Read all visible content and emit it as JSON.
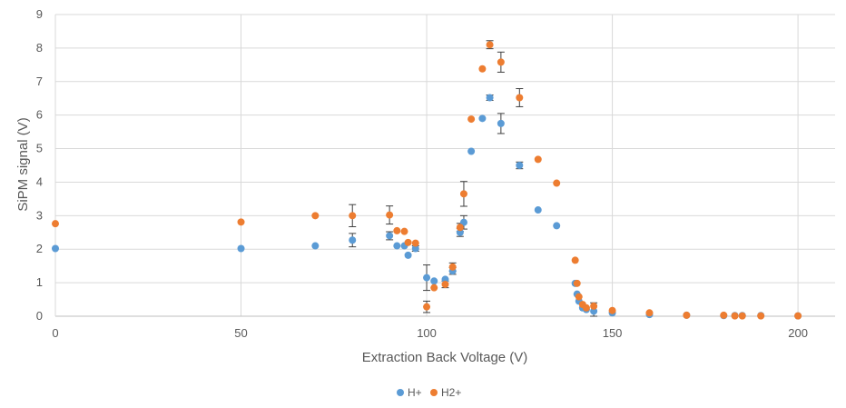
{
  "chart_data": {
    "type": "scatter",
    "title": "",
    "xlabel": "Extraction Back Voltage (V)",
    "ylabel": "SiPM signal (V)",
    "xlim": [
      0,
      210
    ],
    "ylim": [
      0,
      9
    ],
    "xticks": [
      0,
      50,
      100,
      150,
      200
    ],
    "yticks": [
      0,
      1,
      2,
      3,
      4,
      5,
      6,
      7,
      8,
      9
    ],
    "grid": true,
    "legend_position": "bottom",
    "series": [
      {
        "name": "H+",
        "color": "#5B9BD5",
        "points": [
          {
            "x": 0,
            "y": 2.02
          },
          {
            "x": 50,
            "y": 2.02
          },
          {
            "x": 70,
            "y": 2.1
          },
          {
            "x": 80,
            "y": 2.27,
            "err": 0.2
          },
          {
            "x": 90,
            "y": 2.4,
            "err": 0.12
          },
          {
            "x": 92,
            "y": 2.1
          },
          {
            "x": 94,
            "y": 2.1
          },
          {
            "x": 95,
            "y": 1.82
          },
          {
            "x": 97,
            "y": 2.02,
            "err": 0.08
          },
          {
            "x": 100,
            "y": 1.15,
            "err": 0.38
          },
          {
            "x": 102,
            "y": 1.05
          },
          {
            "x": 105,
            "y": 1.1
          },
          {
            "x": 107,
            "y": 1.35,
            "err": 0.1
          },
          {
            "x": 109,
            "y": 2.5,
            "err": 0.12
          },
          {
            "x": 110,
            "y": 2.8,
            "err": 0.2
          },
          {
            "x": 112,
            "y": 4.92
          },
          {
            "x": 115,
            "y": 5.9
          },
          {
            "x": 117,
            "y": 6.52,
            "err": 0.08
          },
          {
            "x": 120,
            "y": 5.75,
            "err": 0.3
          },
          {
            "x": 125,
            "y": 4.5,
            "err": 0.1
          },
          {
            "x": 130,
            "y": 3.17
          },
          {
            "x": 135,
            "y": 2.7
          },
          {
            "x": 140,
            "y": 0.98
          },
          {
            "x": 140.5,
            "y": 0.66
          },
          {
            "x": 141,
            "y": 0.45
          },
          {
            "x": 142,
            "y": 0.25
          },
          {
            "x": 143,
            "y": 0.2
          },
          {
            "x": 145,
            "y": 0.15,
            "err": 0.25
          },
          {
            "x": 150,
            "y": 0.1
          },
          {
            "x": 160,
            "y": 0.05
          },
          {
            "x": 170,
            "y": 0.03
          },
          {
            "x": 180,
            "y": 0.02
          },
          {
            "x": 183,
            "y": 0.02
          },
          {
            "x": 185,
            "y": 0.02
          },
          {
            "x": 190,
            "y": 0.02
          },
          {
            "x": 200,
            "y": 0.01
          }
        ]
      },
      {
        "name": "H2+",
        "color": "#ED7D31",
        "points": [
          {
            "x": 0,
            "y": 2.76
          },
          {
            "x": 50,
            "y": 2.81
          },
          {
            "x": 70,
            "y": 3.0
          },
          {
            "x": 80,
            "y": 3.0,
            "err": 0.33
          },
          {
            "x": 90,
            "y": 3.02,
            "err": 0.27
          },
          {
            "x": 92,
            "y": 2.55
          },
          {
            "x": 94,
            "y": 2.53
          },
          {
            "x": 95,
            "y": 2.2
          },
          {
            "x": 97,
            "y": 2.18
          },
          {
            "x": 100,
            "y": 0.28,
            "err": 0.17
          },
          {
            "x": 102,
            "y": 0.85
          },
          {
            "x": 105,
            "y": 0.95,
            "err": 0.1
          },
          {
            "x": 107,
            "y": 1.47,
            "err": 0.12
          },
          {
            "x": 109,
            "y": 2.65,
            "err": 0.12
          },
          {
            "x": 110,
            "y": 3.65,
            "err": 0.37
          },
          {
            "x": 112,
            "y": 5.88
          },
          {
            "x": 115,
            "y": 7.38
          },
          {
            "x": 117,
            "y": 8.1,
            "err": 0.12
          },
          {
            "x": 120,
            "y": 7.58,
            "err": 0.3
          },
          {
            "x": 125,
            "y": 6.52,
            "err": 0.27
          },
          {
            "x": 130,
            "y": 4.68
          },
          {
            "x": 135,
            "y": 3.97
          },
          {
            "x": 140,
            "y": 1.67
          },
          {
            "x": 140.5,
            "y": 0.98
          },
          {
            "x": 141,
            "y": 0.58
          },
          {
            "x": 142,
            "y": 0.35
          },
          {
            "x": 143,
            "y": 0.25
          },
          {
            "x": 145,
            "y": 0.3
          },
          {
            "x": 150,
            "y": 0.17
          },
          {
            "x": 160,
            "y": 0.1
          },
          {
            "x": 170,
            "y": 0.03
          },
          {
            "x": 180,
            "y": 0.03
          },
          {
            "x": 183,
            "y": 0.01
          },
          {
            "x": 185,
            "y": 0.01
          },
          {
            "x": 190,
            "y": 0.01
          },
          {
            "x": 200,
            "y": 0.01
          }
        ]
      }
    ]
  }
}
